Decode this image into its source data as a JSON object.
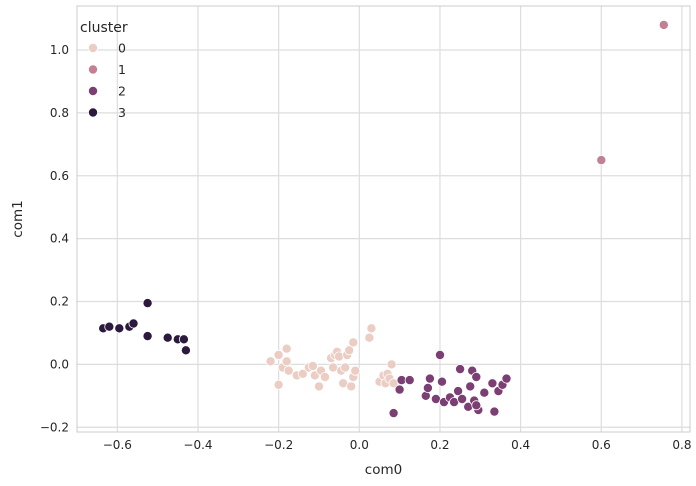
{
  "chart_data": {
    "type": "scatter",
    "xlabel": "com0",
    "ylabel": "com1",
    "xlim": [
      -0.7,
      0.82
    ],
    "ylim": [
      -0.215,
      1.14
    ],
    "xticks": [
      -0.6,
      -0.4,
      -0.2,
      0.0,
      0.2,
      0.4,
      0.6,
      0.8
    ],
    "yticks": [
      -0.2,
      0.0,
      0.2,
      0.4,
      0.6,
      0.8,
      1.0
    ],
    "xtick_labels": [
      "−0.6",
      "−0.4",
      "−0.2",
      "0.0",
      "0.2",
      "0.4",
      "0.6",
      "0.8"
    ],
    "ytick_labels": [
      "−0.2",
      "0.0",
      "0.2",
      "0.4",
      "0.6",
      "0.8",
      "1.0"
    ],
    "grid": true,
    "legend": {
      "title": "cluster",
      "placement": "top-left"
    },
    "series": [
      {
        "name": "0",
        "color": "#ebcdc4",
        "points": [
          [
            -0.22,
            0.01
          ],
          [
            -0.2,
            0.03
          ],
          [
            -0.19,
            -0.01
          ],
          [
            -0.18,
            0.01
          ],
          [
            -0.18,
            0.05
          ],
          [
            -0.175,
            -0.02
          ],
          [
            -0.2,
            -0.065
          ],
          [
            -0.155,
            -0.035
          ],
          [
            -0.14,
            -0.03
          ],
          [
            -0.125,
            -0.01
          ],
          [
            -0.115,
            -0.005
          ],
          [
            -0.11,
            -0.035
          ],
          [
            -0.1,
            -0.07
          ],
          [
            -0.095,
            -0.02
          ],
          [
            -0.085,
            -0.04
          ],
          [
            -0.07,
            0.02
          ],
          [
            -0.065,
            -0.01
          ],
          [
            -0.06,
            0.03
          ],
          [
            -0.055,
            0.04
          ],
          [
            -0.05,
            0.025
          ],
          [
            -0.045,
            -0.02
          ],
          [
            -0.04,
            -0.06
          ],
          [
            -0.035,
            -0.01
          ],
          [
            -0.03,
            0.03
          ],
          [
            -0.025,
            0.045
          ],
          [
            -0.02,
            -0.07
          ],
          [
            -0.015,
            -0.04
          ],
          [
            -0.01,
            -0.02
          ],
          [
            -0.015,
            0.07
          ],
          [
            0.025,
            0.085
          ],
          [
            0.03,
            0.115
          ],
          [
            0.05,
            -0.055
          ],
          [
            0.06,
            -0.035
          ],
          [
            0.065,
            -0.06
          ],
          [
            0.07,
            -0.03
          ],
          [
            0.075,
            -0.045
          ],
          [
            0.08,
            0.0
          ],
          [
            0.085,
            -0.06
          ]
        ]
      },
      {
        "name": "1",
        "color": "#c47f92",
        "points": [
          [
            0.6,
            0.65
          ],
          [
            0.755,
            1.08
          ]
        ]
      },
      {
        "name": "2",
        "color": "#7c3f73",
        "points": [
          [
            0.085,
            -0.155
          ],
          [
            0.1,
            -0.08
          ],
          [
            0.105,
            -0.05
          ],
          [
            0.125,
            -0.05
          ],
          [
            0.165,
            -0.1
          ],
          [
            0.17,
            -0.075
          ],
          [
            0.175,
            -0.045
          ],
          [
            0.19,
            -0.11
          ],
          [
            0.2,
            0.03
          ],
          [
            0.205,
            -0.055
          ],
          [
            0.21,
            -0.12
          ],
          [
            0.225,
            -0.105
          ],
          [
            0.235,
            -0.12
          ],
          [
            0.245,
            -0.085
          ],
          [
            0.25,
            -0.015
          ],
          [
            0.255,
            -0.11
          ],
          [
            0.27,
            -0.135
          ],
          [
            0.275,
            -0.07
          ],
          [
            0.28,
            -0.02
          ],
          [
            0.285,
            -0.115
          ],
          [
            0.29,
            -0.04
          ],
          [
            0.295,
            -0.145
          ],
          [
            0.29,
            -0.13
          ],
          [
            0.31,
            -0.09
          ],
          [
            0.33,
            -0.06
          ],
          [
            0.335,
            -0.15
          ],
          [
            0.345,
            -0.085
          ],
          [
            0.355,
            -0.065
          ],
          [
            0.365,
            -0.045
          ]
        ]
      },
      {
        "name": "3",
        "color": "#2b1a3e",
        "points": [
          [
            -0.635,
            0.115
          ],
          [
            -0.62,
            0.12
          ],
          [
            -0.595,
            0.115
          ],
          [
            -0.57,
            0.12
          ],
          [
            -0.56,
            0.13
          ],
          [
            -0.525,
            0.195
          ],
          [
            -0.525,
            0.09
          ],
          [
            -0.475,
            0.085
          ],
          [
            -0.45,
            0.08
          ],
          [
            -0.435,
            0.08
          ],
          [
            -0.43,
            0.045
          ]
        ]
      }
    ]
  }
}
